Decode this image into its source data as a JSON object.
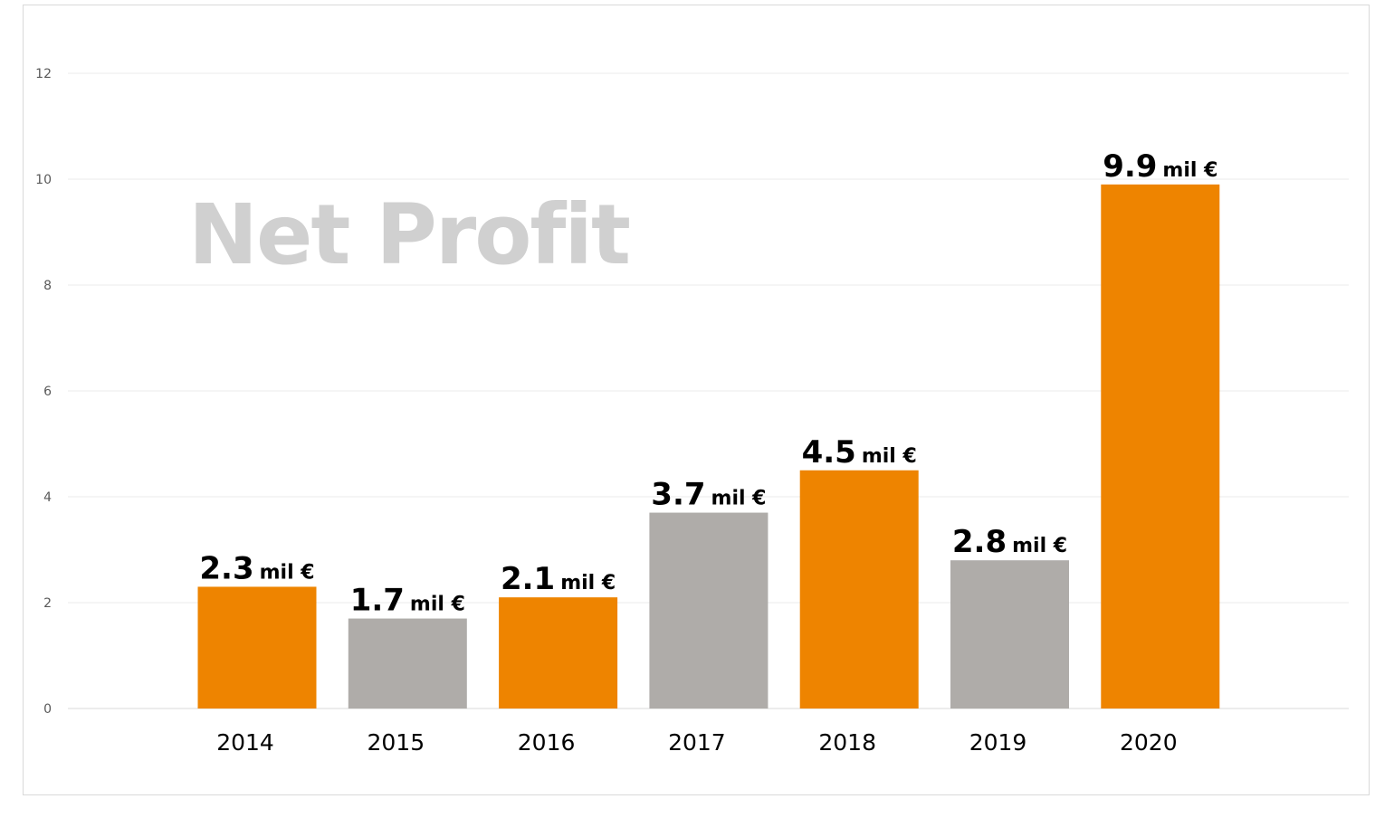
{
  "chart_data": {
    "type": "bar",
    "title": "Net Profit",
    "xlabel": "",
    "ylabel": "",
    "categories": [
      "2014",
      "2015",
      "2016",
      "2017",
      "2018",
      "2019",
      "2020"
    ],
    "values": [
      2.3,
      1.7,
      2.1,
      3.7,
      4.5,
      2.8,
      9.9
    ],
    "value_labels": [
      "2.3",
      "1.7",
      "2.1",
      "3.7",
      "4.5",
      "2.8",
      "9.9"
    ],
    "value_unit": "mil €",
    "bar_colors": [
      "#ee8400",
      "#afaca9",
      "#ee8400",
      "#afaca9",
      "#ee8400",
      "#afaca9",
      "#ee8400"
    ],
    "ylim": [
      0,
      12
    ],
    "yticks": [
      0,
      2,
      4,
      6,
      8,
      10,
      12
    ],
    "grid": true,
    "legend": "none"
  }
}
